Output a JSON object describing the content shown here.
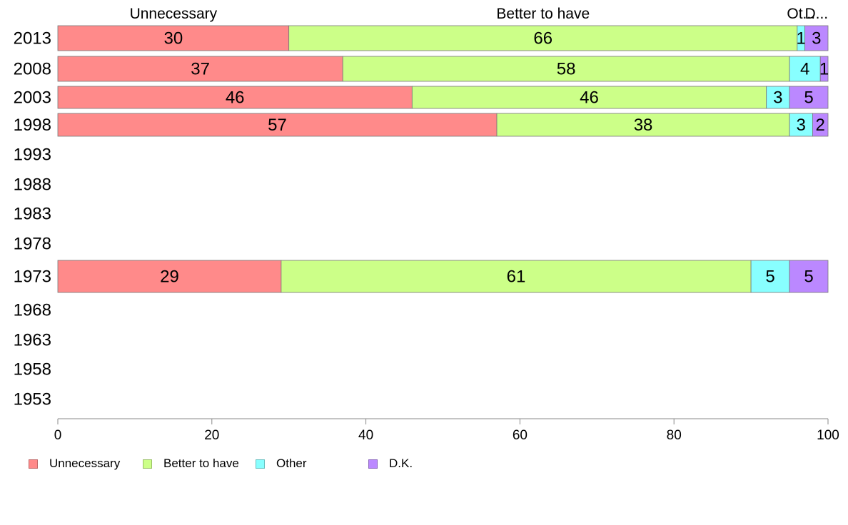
{
  "chart_data": {
    "type": "bar",
    "orientation": "horizontal",
    "stacked": true,
    "categories": [
      "2013",
      "2008",
      "2003",
      "1998",
      "1993",
      "1988",
      "1983",
      "1978",
      "1973",
      "1968",
      "1963",
      "1958",
      "1953"
    ],
    "series": [
      {
        "name": "Unnecessary",
        "values": [
          30,
          37,
          46,
          57,
          null,
          null,
          null,
          null,
          29,
          null,
          null,
          null,
          null
        ],
        "top_label": "Unnecessary"
      },
      {
        "name": "Better to have",
        "values": [
          66,
          58,
          46,
          38,
          null,
          null,
          null,
          null,
          61,
          null,
          null,
          null,
          null
        ],
        "top_label": "Better to have"
      },
      {
        "name": "Other",
        "values": [
          1,
          4,
          3,
          3,
          null,
          null,
          null,
          null,
          5,
          null,
          null,
          null,
          null
        ],
        "top_label": "Ot..."
      },
      {
        "name": "D.K.",
        "values": [
          3,
          1,
          5,
          2,
          null,
          null,
          null,
          null,
          5,
          null,
          null,
          null,
          null
        ],
        "top_label": "D..."
      }
    ],
    "xlim": [
      0,
      100
    ],
    "xticks": [
      0,
      20,
      40,
      60,
      80,
      100
    ],
    "xlabel": "",
    "ylabel": "",
    "title": "",
    "grid": false,
    "legend": "bottom",
    "colors": [
      "#ff8a8a",
      "#ccff88",
      "#88ffff",
      "#bb88ff"
    ]
  }
}
